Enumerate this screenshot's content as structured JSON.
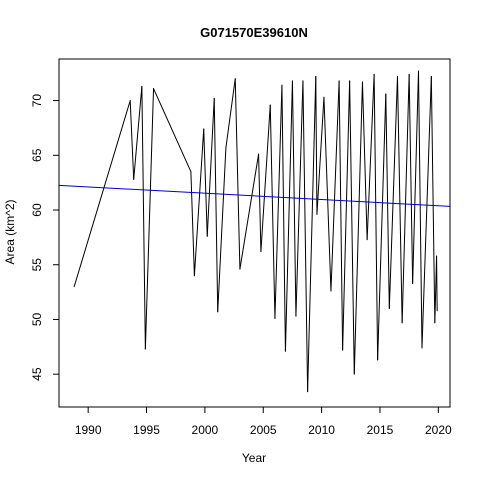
{
  "chart_data": {
    "type": "line",
    "title": "G071570E39610N",
    "xlabel": "Year",
    "ylabel": "Area (km^2)",
    "xlim": [
      1987.5,
      2021.0
    ],
    "ylim": [
      42.0,
      73.8
    ],
    "x_ticks": [
      1990,
      1995,
      2000,
      2005,
      2010,
      2015,
      2020
    ],
    "y_ticks": [
      45,
      50,
      55,
      60,
      65,
      70
    ],
    "grid": false,
    "legend": "none",
    "series": [
      {
        "color": "#000000",
        "points": [
          [
            1988.8,
            53.0
          ],
          [
            1993.6,
            70.0
          ],
          [
            1993.9,
            62.8
          ],
          [
            1994.6,
            71.3
          ],
          [
            1994.9,
            47.3
          ],
          [
            1995.6,
            71.1
          ],
          [
            1998.8,
            63.5
          ],
          [
            1999.1,
            54.0
          ],
          [
            1999.9,
            67.4
          ],
          [
            2000.2,
            57.6
          ],
          [
            2000.8,
            70.2
          ],
          [
            2001.1,
            50.7
          ],
          [
            2001.8,
            65.7
          ],
          [
            2002.6,
            72.0
          ],
          [
            2003.0,
            54.6
          ],
          [
            2004.6,
            65.1
          ],
          [
            2004.8,
            56.2
          ],
          [
            2005.6,
            69.6
          ],
          [
            2006.0,
            50.1
          ],
          [
            2006.6,
            71.4
          ],
          [
            2006.9,
            47.1
          ],
          [
            2007.5,
            71.8
          ],
          [
            2007.8,
            50.3
          ],
          [
            2008.4,
            71.8
          ],
          [
            2008.8,
            43.4
          ],
          [
            2009.5,
            72.2
          ],
          [
            2009.6,
            59.6
          ],
          [
            2010.2,
            70.3
          ],
          [
            2010.8,
            52.6
          ],
          [
            2011.5,
            71.8
          ],
          [
            2011.8,
            47.2
          ],
          [
            2012.4,
            71.8
          ],
          [
            2012.8,
            45.0
          ],
          [
            2013.5,
            71.7
          ],
          [
            2013.9,
            57.3
          ],
          [
            2014.5,
            72.4
          ],
          [
            2014.8,
            46.3
          ],
          [
            2015.5,
            70.6
          ],
          [
            2015.8,
            51.0
          ],
          [
            2016.5,
            72.2
          ],
          [
            2016.9,
            49.7
          ],
          [
            2017.5,
            72.4
          ],
          [
            2017.8,
            53.3
          ],
          [
            2018.3,
            72.7
          ],
          [
            2018.6,
            47.4
          ],
          [
            2019.4,
            72.2
          ],
          [
            2019.7,
            49.7
          ],
          [
            2019.85,
            55.8
          ],
          [
            2019.9,
            50.8
          ]
        ]
      },
      {
        "color": "#0000CD",
        "points": [
          [
            1987.5,
            62.25
          ],
          [
            2021.0,
            60.33
          ]
        ]
      }
    ]
  }
}
